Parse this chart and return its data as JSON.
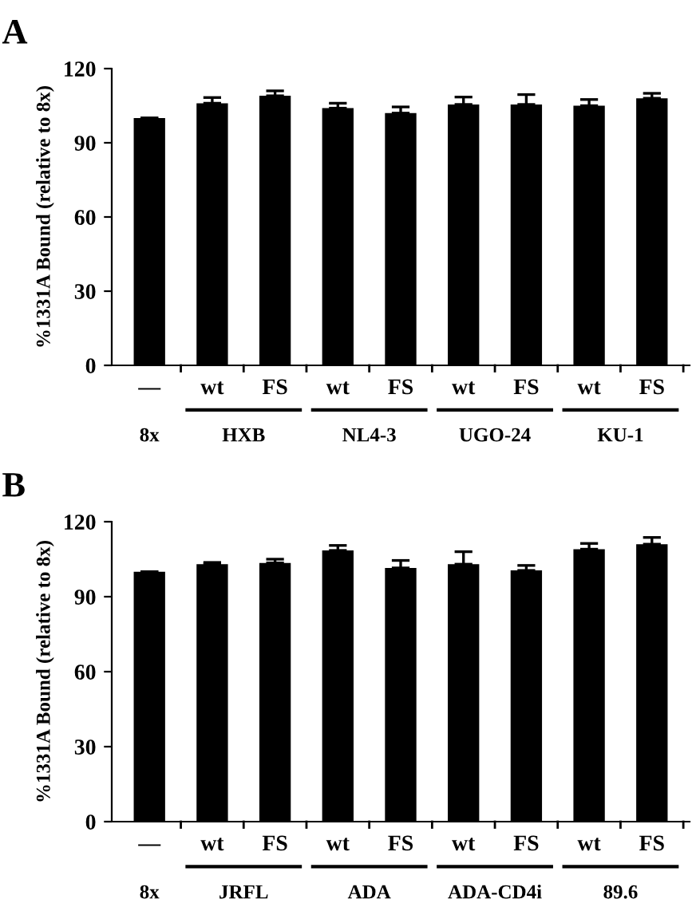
{
  "chart_data": [
    {
      "type": "bar",
      "title": "A",
      "ylabel": "%1331A Bound (relative to 8x)",
      "categories": [
        "—",
        "wt",
        "FS",
        "wt",
        "FS",
        "wt",
        "FS",
        "wt",
        "FS"
      ],
      "values": [
        100,
        106,
        109,
        104,
        102,
        105.5,
        105.5,
        105,
        108
      ],
      "errors": [
        null,
        2.3,
        2,
        2,
        2.5,
        3,
        4,
        2.5,
        2
      ],
      "color": "#000000",
      "ylim": [
        0,
        120
      ],
      "yticks": [
        0,
        30,
        60,
        90,
        120
      ],
      "annotations": [
        "8x",
        "HXB",
        "NL4-3",
        "UGO-24",
        "KU-1"
      ]
    },
    {
      "type": "bar",
      "title": "B",
      "ylabel": "%1331A Bound (relative to 8x)",
      "categories": [
        "—",
        "wt",
        "FS",
        "wt",
        "FS",
        "wt",
        "FS",
        "wt",
        "FS"
      ],
      "values": [
        100,
        103,
        103.5,
        108.5,
        101.5,
        103,
        100.5,
        109,
        111
      ],
      "errors": [
        null,
        0.7,
        1.5,
        2,
        3,
        5,
        2,
        2.3,
        2.7
      ],
      "color": "#000000",
      "ylim": [
        0,
        120
      ],
      "yticks": [
        0,
        30,
        60,
        90,
        120
      ],
      "annotations": [
        "8x",
        "JRFL",
        "ADA",
        "ADA-CD4i",
        "89.6"
      ]
    }
  ]
}
